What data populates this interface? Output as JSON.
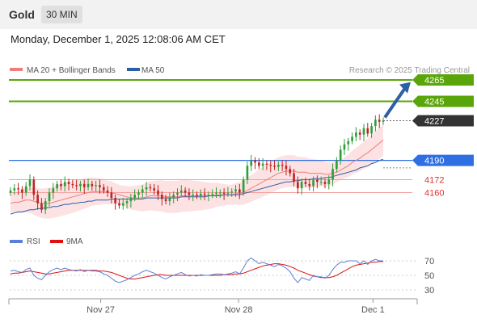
{
  "header": {
    "instrument": "Gold",
    "interval": "30 MIN"
  },
  "timestamp": "Monday, December 1, 2025 12:08:06 AM CET",
  "legend": [
    {
      "label": "MA 20 + Bollinger Bands",
      "color": "#f07c7c"
    },
    {
      "label": "MA 50",
      "color": "#2d5fa6"
    }
  ],
  "credit": "Research © 2025 Trading Central",
  "rsi_legend": [
    {
      "label": "RSI",
      "color": "#5b7fd6"
    },
    {
      "label": "9MA",
      "color": "#e01010"
    }
  ],
  "colors": {
    "up": "#2e9e3a",
    "down": "#c22222",
    "resistance": "#5aa60a",
    "support": "#2f6fe4",
    "pivot": "#333333",
    "target": "#e03030",
    "bband": "#f9caca"
  },
  "chart_data": [
    {
      "type": "candlestick",
      "title": "",
      "price_labels": [
        "4265",
        "4245",
        "4227",
        "4190",
        "4172",
        "4160"
      ],
      "levels": [
        {
          "label": "4265",
          "value": 4265,
          "kind": "resistance"
        },
        {
          "label": "4245",
          "value": 4245,
          "kind": "resistance"
        },
        {
          "label": "4227",
          "value": 4227,
          "kind": "last-price"
        },
        {
          "label": "4190",
          "value": 4190,
          "kind": "pivot"
        },
        {
          "label": "4172",
          "value": 4172,
          "kind": "support"
        },
        {
          "label": "4160",
          "value": 4160,
          "kind": "support"
        }
      ],
      "x_ticks": [
        "Nov 27",
        "Nov 28",
        "Dec 1"
      ],
      "ylim": [
        4125,
        4268
      ],
      "close": [
        4162,
        4164,
        4163,
        4160,
        4166,
        4172,
        4158,
        4150,
        4144,
        4152,
        4160,
        4164,
        4168,
        4166,
        4170,
        4168,
        4167,
        4166,
        4168,
        4165,
        4168,
        4166,
        4167,
        4165,
        4162,
        4160,
        4155,
        4150,
        4148,
        4150,
        4152,
        4155,
        4158,
        4160,
        4163,
        4165,
        4164,
        4162,
        4158,
        4154,
        4152,
        4155,
        4158,
        4160,
        4162,
        4160,
        4158,
        4158,
        4157,
        4159,
        4158,
        4158,
        4159,
        4160,
        4160,
        4159,
        4160,
        4161,
        4163,
        4160,
        4172,
        4185,
        4190,
        4188,
        4185,
        4187,
        4186,
        4185,
        4184,
        4186,
        4185,
        4182,
        4178,
        4170,
        4164,
        4170,
        4168,
        4166,
        4172,
        4170,
        4170,
        4168,
        4172,
        4182,
        4190,
        4200,
        4205,
        4208,
        4212,
        4216,
        4214,
        4220,
        4215,
        4222,
        4228,
        4226,
        4227
      ],
      "ma20": [
        4150,
        4151,
        4151,
        4152,
        4153,
        4153,
        4152,
        4151,
        4150,
        4150,
        4150,
        4151,
        4152,
        4153,
        4154,
        4155,
        4156,
        4157,
        4158,
        4159,
        4160,
        4161,
        4161,
        4161,
        4161,
        4160,
        4160,
        4159,
        4158,
        4157,
        4156,
        4155,
        4155,
        4155,
        4155,
        4156,
        4157,
        4157,
        4157,
        4157,
        4156,
        4156,
        4156,
        4156,
        4157,
        4157,
        4157,
        4157,
        4157,
        4157,
        4157,
        4157,
        4157,
        4158,
        4158,
        4158,
        4158,
        4158,
        4159,
        4159,
        4160,
        4162,
        4164,
        4166,
        4168,
        4170,
        4172,
        4174,
        4176,
        4178,
        4179,
        4180,
        4180,
        4180,
        4179,
        4179,
        4179,
        4178,
        4178,
        4178,
        4178,
        4177,
        4177,
        4178,
        4179,
        4181,
        4183,
        4185,
        4188,
        4190,
        4192,
        4195,
        4197,
        4200,
        4203,
        4206,
        4209
      ],
      "ma50": [
        4140,
        4141,
        4142,
        4142,
        4143,
        4144,
        4144,
        4145,
        4145,
        4146,
        4146,
        4147,
        4147,
        4148,
        4149,
        4149,
        4150,
        4150,
        4151,
        4151,
        4152,
        4152,
        4153,
        4153,
        4153,
        4153,
        4154,
        4154,
        4154,
        4154,
        4154,
        4154,
        4154,
        4154,
        4154,
        4155,
        4155,
        4155,
        4155,
        4155,
        4155,
        4155,
        4155,
        4155,
        4156,
        4156,
        4156,
        4156,
        4156,
        4156,
        4156,
        4157,
        4157,
        4157,
        4157,
        4158,
        4158,
        4158,
        4158,
        4158,
        4159,
        4160,
        4161,
        4162,
        4163,
        4164,
        4165,
        4166,
        4167,
        4168,
        4169,
        4170,
        4170,
        4171,
        4171,
        4172,
        4172,
        4172,
        4173,
        4173,
        4173,
        4174,
        4174,
        4175,
        4176,
        4177,
        4178,
        4179,
        4180,
        4181,
        4183,
        4184,
        4185,
        4187,
        4188,
        4190,
        4191
      ]
    },
    {
      "type": "line",
      "title": "RSI",
      "y_ticks": [
        "70",
        "50",
        "30"
      ],
      "ylim": [
        20,
        80
      ],
      "series": [
        {
          "name": "RSI",
          "values": [
            56,
            57,
            55,
            54,
            58,
            60,
            50,
            46,
            44,
            50,
            55,
            58,
            60,
            58,
            60,
            58,
            57,
            56,
            58,
            55,
            57,
            56,
            56,
            55,
            52,
            50,
            46,
            42,
            40,
            42,
            44,
            47,
            50,
            52,
            55,
            57,
            55,
            53,
            50,
            47,
            45,
            48,
            50,
            52,
            54,
            51,
            49,
            50,
            49,
            51,
            50,
            50,
            51,
            52,
            52,
            51,
            52,
            53,
            55,
            52,
            60,
            70,
            74,
            70,
            66,
            68,
            66,
            64,
            62,
            65,
            63,
            60,
            55,
            46,
            40,
            47,
            45,
            43,
            50,
            48,
            48,
            46,
            50,
            58,
            64,
            68,
            68,
            70,
            70,
            70,
            66,
            70,
            65,
            70,
            72,
            70,
            70
          ]
        },
        {
          "name": "9MA",
          "values": [
            52,
            53,
            53,
            54,
            55,
            56,
            55,
            54,
            53,
            52,
            52,
            53,
            54,
            55,
            56,
            57,
            57,
            57,
            57,
            57,
            57,
            57,
            57,
            56,
            56,
            55,
            54,
            52,
            50,
            48,
            46,
            45,
            45,
            46,
            47,
            48,
            49,
            50,
            51,
            51,
            50,
            50,
            50,
            50,
            50,
            50,
            50,
            50,
            50,
            50,
            50,
            50,
            50,
            50,
            50,
            51,
            51,
            51,
            52,
            52,
            53,
            55,
            57,
            59,
            61,
            63,
            64,
            65,
            66,
            66,
            65,
            64,
            62,
            60,
            57,
            55,
            53,
            51,
            49,
            48,
            47,
            47,
            47,
            48,
            50,
            53,
            56,
            59,
            62,
            64,
            65,
            66,
            67,
            68,
            68,
            69,
            69
          ]
        }
      ]
    }
  ]
}
